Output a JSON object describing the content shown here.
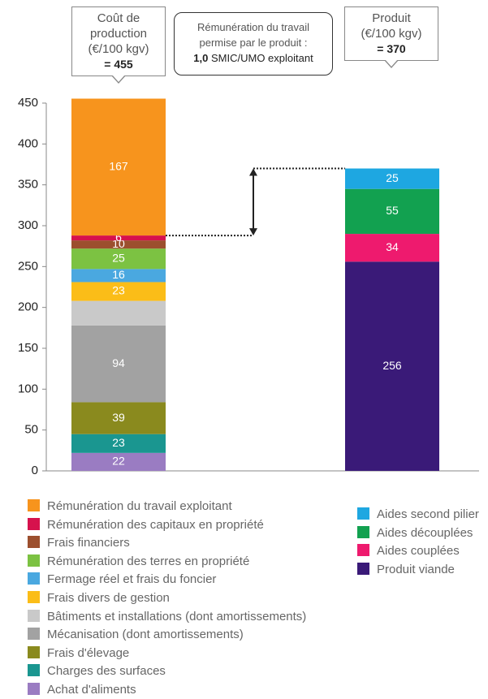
{
  "chart_data": {
    "type": "stacked_bar",
    "categories": [
      "Coût de production (€/100 kgv)",
      "Produit (€/100 kgv)"
    ],
    "totals": [
      455,
      370
    ],
    "total_labels": [
      "= 455",
      "= 370"
    ],
    "annotation": "Rémunération du travail permise par le produit :",
    "annotation_value": "1,0",
    "annotation_unit": "SMIC/UMO exploitant",
    "ylim": [
      0,
      450
    ],
    "yticks": [
      0,
      50,
      100,
      150,
      200,
      250,
      300,
      350,
      400,
      450
    ],
    "series": [
      {
        "name": "Rémunération du travail exploitant",
        "color": "#f7941d",
        "values": [
          167,
          null
        ]
      },
      {
        "name": "Rémunération des capitaux en propriété",
        "color": "#d6124d",
        "values": [
          6,
          null
        ]
      },
      {
        "name": "Frais financiers",
        "color": "#9c4f2e",
        "values": [
          10,
          null
        ]
      },
      {
        "name": "Rémunération des terres en propriété",
        "color": "#7cc242",
        "values": [
          25,
          null
        ]
      },
      {
        "name": "Fermage réel et frais du foncier",
        "color": "#4aa8e0",
        "values": [
          16,
          null
        ]
      },
      {
        "name": "Frais divers de gestion",
        "color": "#fbbd18",
        "values": [
          23,
          null
        ]
      },
      {
        "name": "Bâtiments et installations (dont amortissements)",
        "color": "#c9c9c9",
        "values": [
          30,
          null
        ],
        "value_labels": [
          null,
          null
        ]
      },
      {
        "name": "Mécanisation (dont amortissements)",
        "color": "#a2a2a2",
        "values": [
          94,
          null
        ]
      },
      {
        "name": "Frais d'élevage",
        "color": "#8a8a1e",
        "values": [
          39,
          null
        ]
      },
      {
        "name": "Charges des surfaces",
        "color": "#1a9690",
        "values": [
          23,
          null
        ]
      },
      {
        "name": "Achat d'aliments",
        "color": "#9a7cc2",
        "values": [
          22,
          null
        ]
      },
      {
        "name": "Aides second pilier",
        "color": "#1ea7e1",
        "values": [
          null,
          25
        ]
      },
      {
        "name": "Aides découplées",
        "color": "#12a150",
        "values": [
          null,
          55
        ]
      },
      {
        "name": "Aides couplées",
        "color": "#ee1a6e",
        "values": [
          null,
          34
        ]
      },
      {
        "name": "Produit viande",
        "color": "#3a1a78",
        "values": [
          null,
          256
        ]
      }
    ]
  }
}
